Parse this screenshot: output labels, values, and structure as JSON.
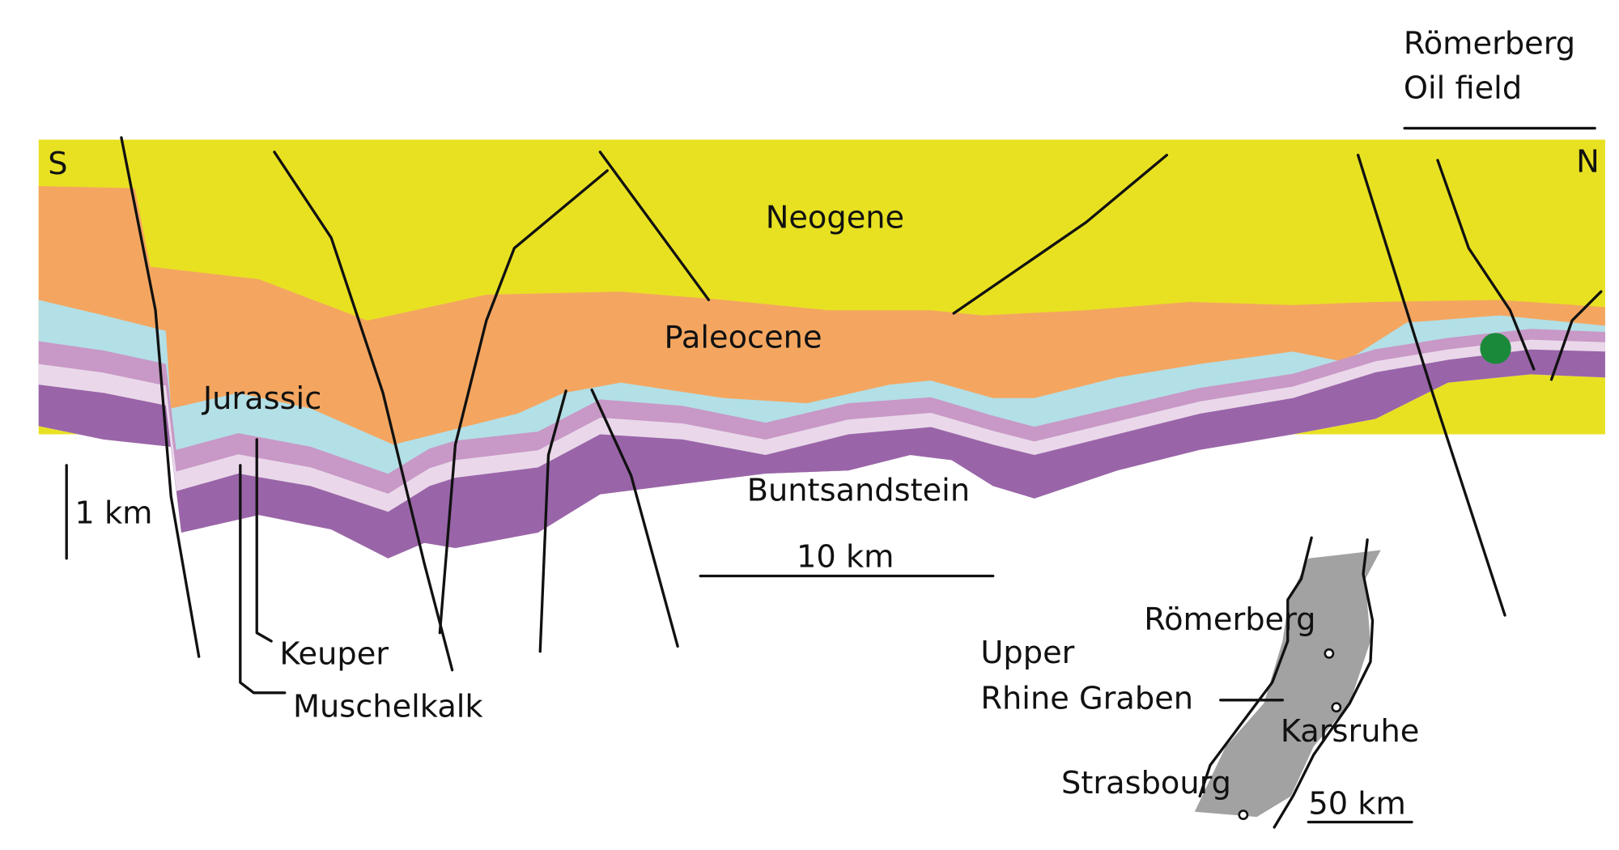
{
  "header": {
    "title_lines": [
      "Römerberg",
      "Oil field"
    ]
  },
  "section": {
    "south": "S",
    "north": "N",
    "layers": {
      "neogene": "Neogene",
      "paleocene": "Paleocene",
      "jurassic": "Jurassic",
      "keuper": "Keuper",
      "muschelkalk": "Muschelkalk",
      "buntsandstein": "Buntsandstein"
    },
    "vertical_scale": "1 km",
    "horizontal_scale": "10 km"
  },
  "inset_map": {
    "region_lines": [
      "Upper",
      "Rhine Graben"
    ],
    "cities": [
      "Römerberg",
      "Karsruhe",
      "Strasbourg"
    ],
    "scale": "50 km"
  }
}
